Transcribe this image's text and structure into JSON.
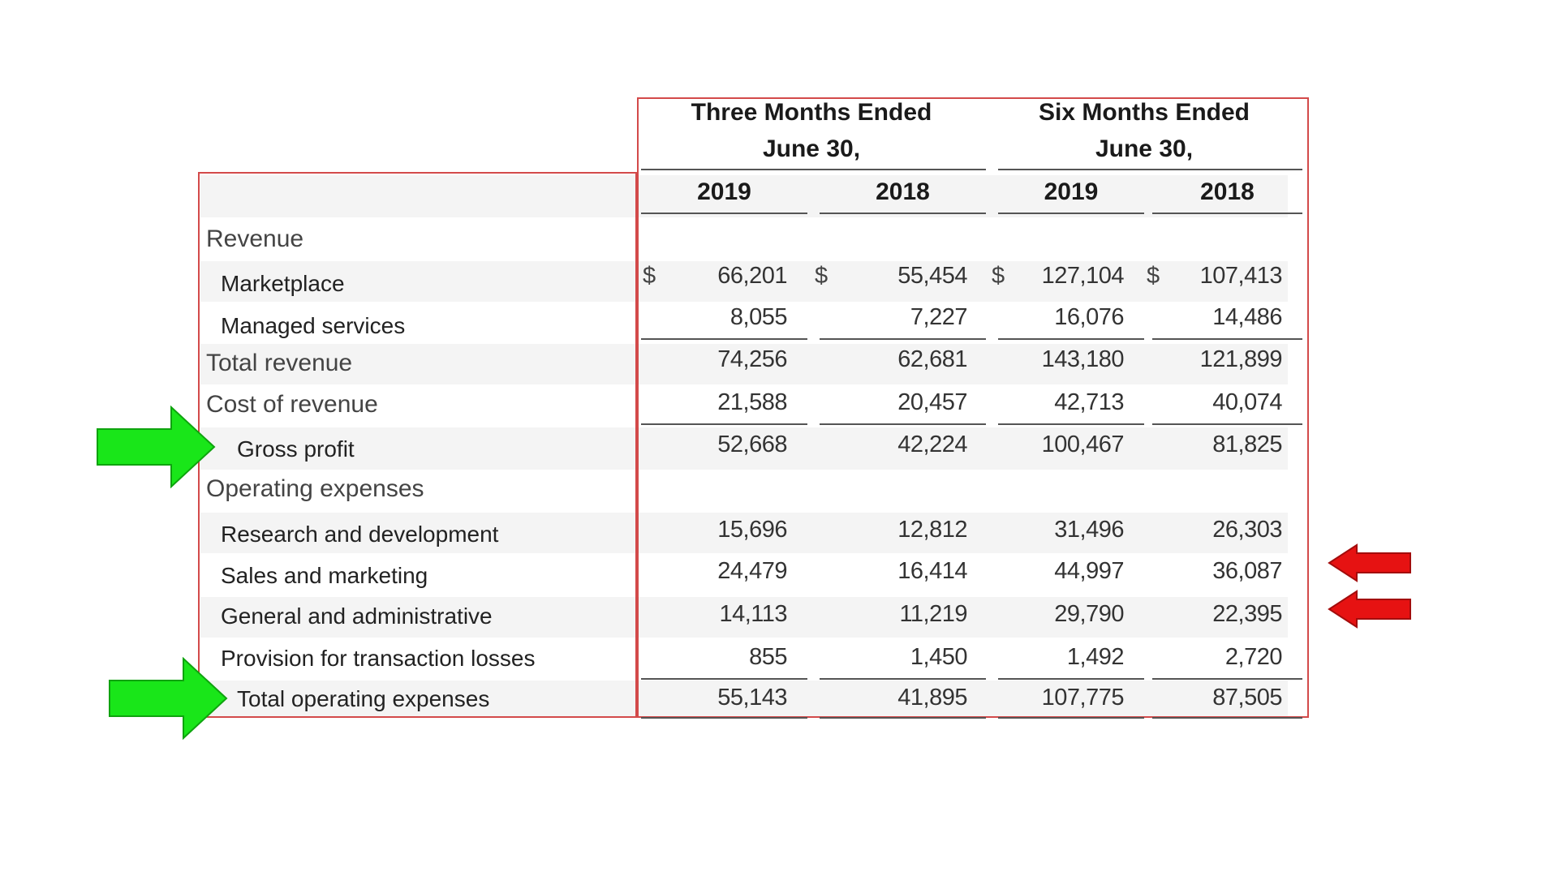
{
  "header": {
    "three_months_line1": "Three Months Ended",
    "three_months_line2": "June 30,",
    "six_months_line1": "Six Months Ended",
    "six_months_line2": "June 30,"
  },
  "columns": [
    "2019",
    "2018",
    "2019",
    "2018"
  ],
  "currency_symbol": "$",
  "rows": [
    {
      "label": "Revenue",
      "kind": "section",
      "values": []
    },
    {
      "label": "Marketplace",
      "kind": "item",
      "values": [
        "66,201",
        "55,454",
        "127,104",
        "107,413"
      ],
      "currency": true
    },
    {
      "label": "Managed services",
      "kind": "item",
      "values": [
        "8,055",
        "7,227",
        "16,076",
        "14,486"
      ]
    },
    {
      "label": "Total revenue",
      "kind": "section",
      "values": [
        "74,256",
        "62,681",
        "143,180",
        "121,899"
      ]
    },
    {
      "label": "Cost of revenue",
      "kind": "section",
      "values": [
        "21,588",
        "20,457",
        "42,713",
        "40,074"
      ]
    },
    {
      "label": "Gross profit",
      "kind": "item",
      "values": [
        "52,668",
        "42,224",
        "100,467",
        "81,825"
      ]
    },
    {
      "label": "Operating expenses",
      "kind": "section",
      "values": []
    },
    {
      "label": "Research and development",
      "kind": "item",
      "values": [
        "15,696",
        "12,812",
        "31,496",
        "26,303"
      ]
    },
    {
      "label": "Sales and marketing",
      "kind": "item",
      "values": [
        "24,479",
        "16,414",
        "44,997",
        "36,087"
      ]
    },
    {
      "label": "General and administrative",
      "kind": "item",
      "values": [
        "14,113",
        "11,219",
        "29,790",
        "22,395"
      ]
    },
    {
      "label": "Provision for transaction losses",
      "kind": "item",
      "values": [
        "855",
        "1,450",
        "1,492",
        "2,720"
      ]
    },
    {
      "label": "Total operating expenses",
      "kind": "item",
      "values": [
        "55,143",
        "41,895",
        "107,775",
        "87,505"
      ]
    }
  ],
  "annotations": {
    "green_color": "#19e619",
    "red_color": "#e61212",
    "green_arrows_point_to": [
      "Gross profit",
      "Total operating expenses"
    ],
    "red_arrows_point_to": [
      "Sales and marketing",
      "General and administrative"
    ]
  }
}
